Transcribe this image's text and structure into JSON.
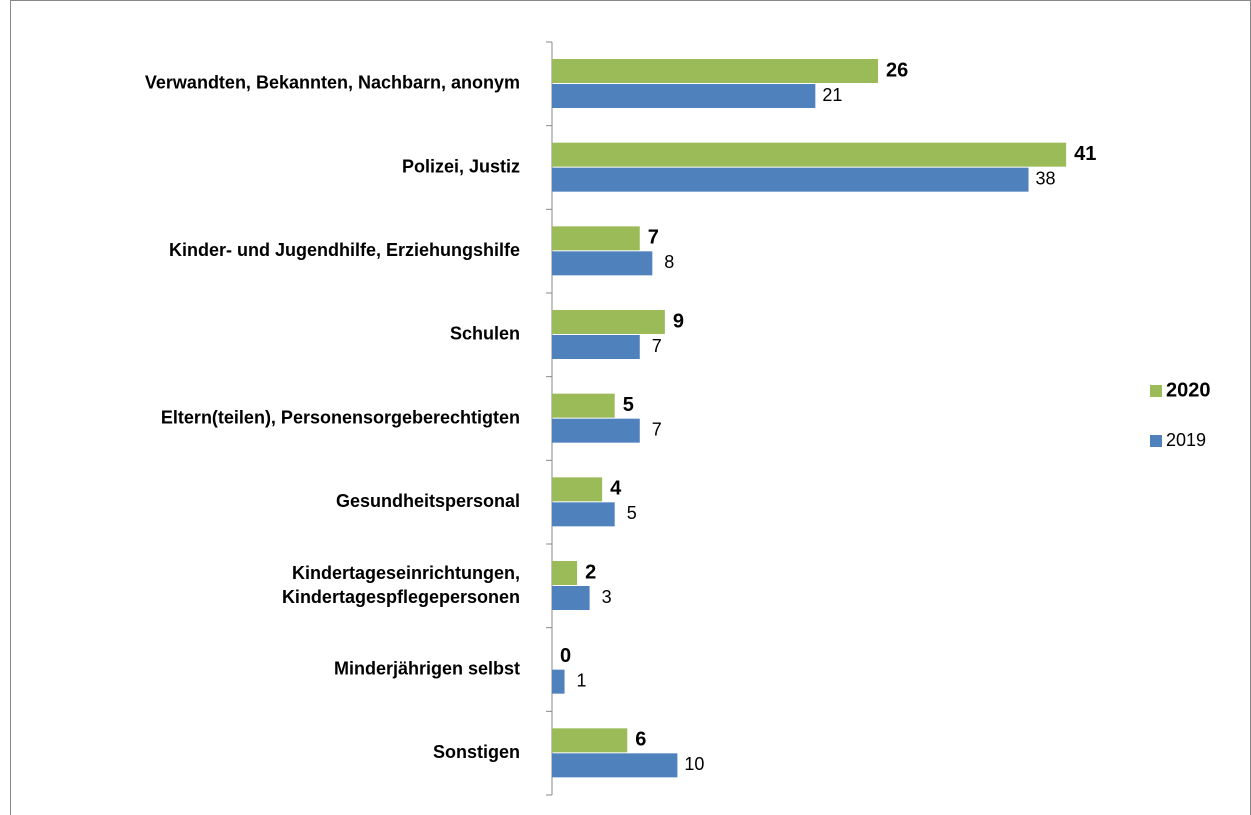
{
  "chart_data": {
    "type": "bar",
    "orientation": "horizontal",
    "categories": [
      "Verwandten, Bekannten, Nachbarn, anonym",
      "Polizei, Justiz",
      "Kinder- und Jugendhilfe, Erziehungshilfe",
      "Schulen",
      "Eltern(teilen), Personensorgeberechtigten",
      "Gesundheitspersonal",
      "Kindertageseinrichtungen,\nKindertagespflegepersonen",
      "Minderjährigen selbst",
      "Sonstigen"
    ],
    "series": [
      {
        "name": "2020",
        "color": "#9bbb59",
        "values": [
          26,
          41,
          7,
          9,
          5,
          4,
          2,
          0,
          6
        ]
      },
      {
        "name": "2019",
        "color": "#4f81bd",
        "values": [
          21,
          38,
          8,
          7,
          7,
          5,
          3,
          1,
          10
        ]
      }
    ],
    "legend": "right"
  }
}
